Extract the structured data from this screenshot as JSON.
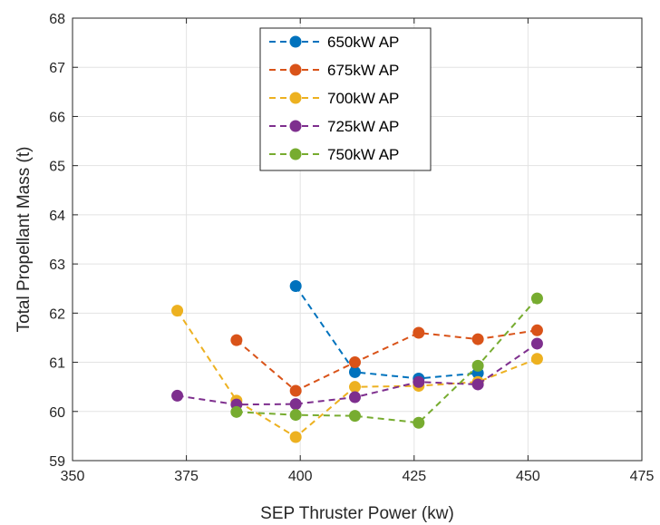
{
  "chart_data": {
    "type": "line",
    "xlabel": "SEP Thruster Power (kw)",
    "ylabel": "Total Propellant Mass (t)",
    "xlim": [
      350,
      475
    ],
    "ylim": [
      59,
      68
    ],
    "xticks": [
      "350",
      "375",
      "400",
      "425",
      "450",
      "475"
    ],
    "yticks": [
      "59",
      "60",
      "61",
      "62",
      "63",
      "64",
      "65",
      "66",
      "67",
      "68"
    ],
    "grid": true,
    "legend_position": "top-center",
    "series": [
      {
        "name": "650kW AP",
        "color": "#0072BD",
        "x": [
          399,
          412,
          426,
          439
        ],
        "y": [
          62.55,
          60.8,
          60.67,
          60.78
        ]
      },
      {
        "name": "675kW AP",
        "color": "#D95319",
        "x": [
          386,
          399,
          412,
          426,
          439,
          452
        ],
        "y": [
          61.45,
          60.42,
          61.0,
          61.6,
          61.47,
          61.65
        ]
      },
      {
        "name": "700kW AP",
        "color": "#EDB120",
        "x": [
          373,
          386,
          399,
          412,
          426,
          439,
          452
        ],
        "y": [
          62.05,
          60.22,
          59.48,
          60.5,
          60.52,
          60.6,
          61.07
        ]
      },
      {
        "name": "725kW AP",
        "color": "#7E2F8E",
        "x": [
          373,
          386,
          399,
          412,
          426,
          439,
          452
        ],
        "y": [
          60.32,
          60.14,
          60.15,
          60.29,
          60.6,
          60.55,
          61.38
        ]
      },
      {
        "name": "750kW AP",
        "color": "#77AC30",
        "x": [
          386,
          399,
          412,
          426,
          439,
          452
        ],
        "y": [
          59.99,
          59.93,
          59.91,
          59.77,
          60.93,
          62.3
        ]
      }
    ]
  }
}
